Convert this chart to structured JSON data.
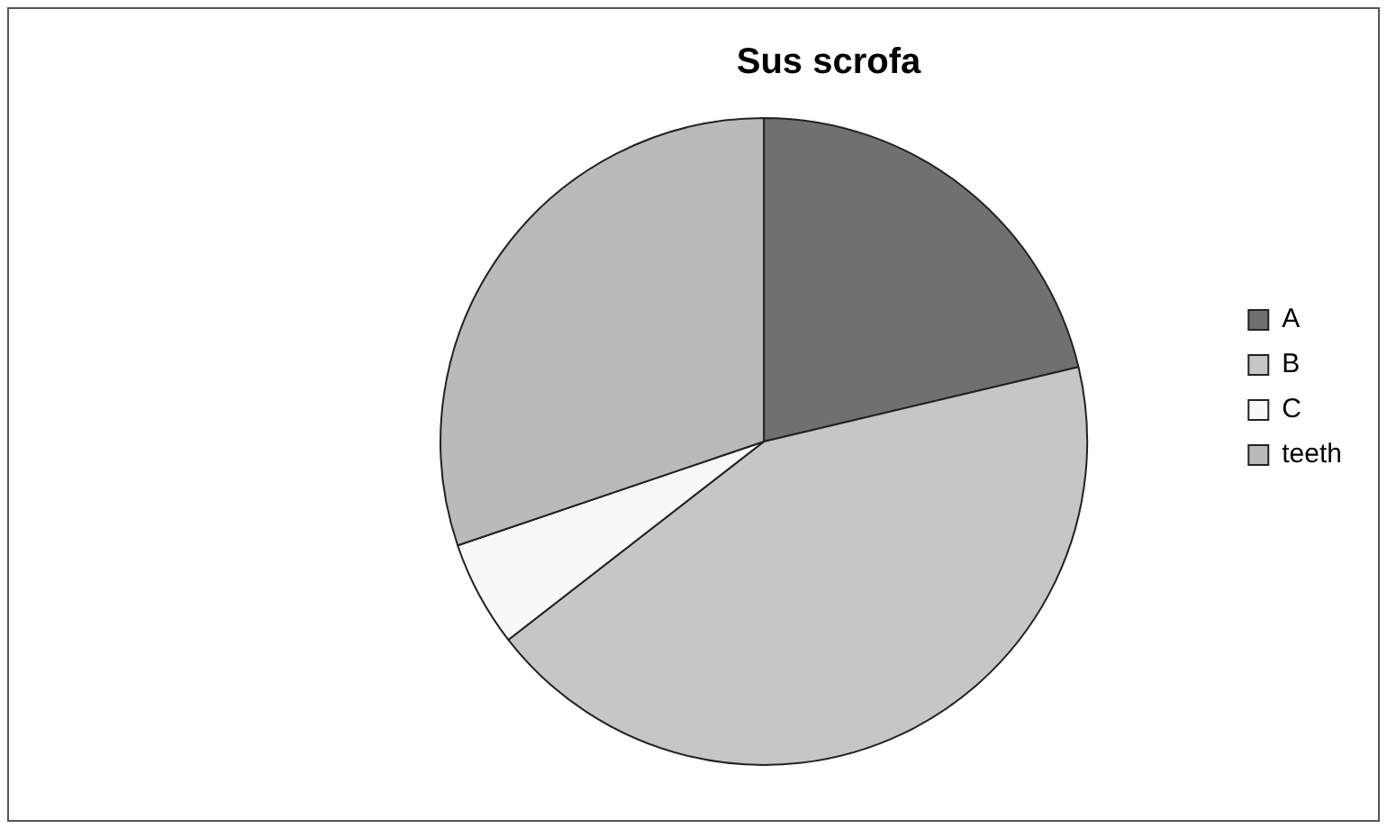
{
  "chart_data": {
    "type": "pie",
    "title": "Sus scrofa",
    "categories": [
      "A",
      "B",
      "C",
      "teeth"
    ],
    "values": [
      21.3,
      43.2,
      5.3,
      30.2
    ],
    "colors": [
      "#707070",
      "#c6c6c6",
      "#f8f8f8",
      "#bababa"
    ],
    "legend": "right"
  }
}
